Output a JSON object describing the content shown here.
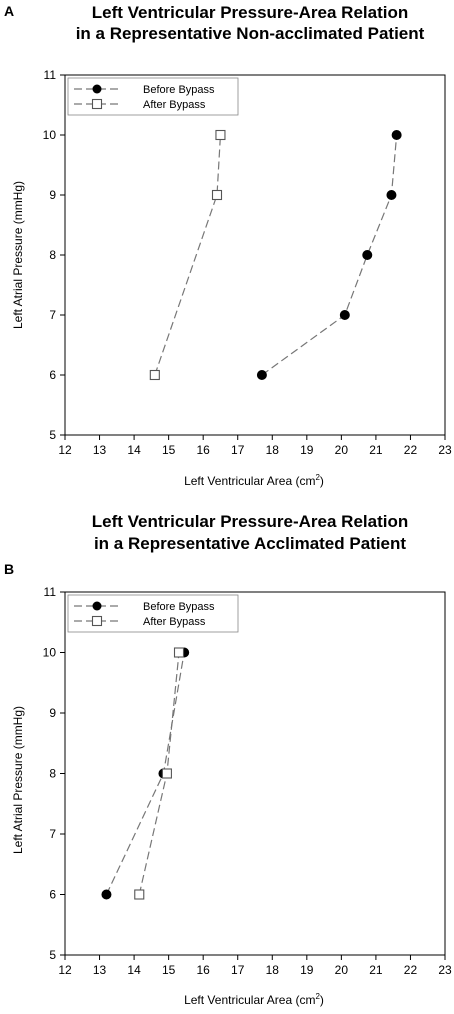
{
  "chart_data": [
    {
      "type": "line",
      "panel": "A",
      "title_line1": "Left Ventricular Pressure-Area Relation",
      "title_line2": "in a Representative Non-acclimated Patient",
      "xlabel": "Left Ventricular Area (cm",
      "xlabel_sup": "2",
      "xlabel_close": ")",
      "ylabel": "Left Atrial Pressure (mmHg)",
      "xlim": [
        12,
        23
      ],
      "ylim": [
        5,
        11
      ],
      "xticks": [
        12,
        13,
        14,
        15,
        16,
        17,
        18,
        19,
        20,
        21,
        22,
        23
      ],
      "yticks": [
        5,
        6,
        7,
        8,
        9,
        10,
        11
      ],
      "legend_position": "top-left",
      "series": [
        {
          "name": "Before Bypass",
          "marker": "filled-circle",
          "color": "#000000",
          "x": [
            17.7,
            20.1,
            20.75,
            21.45,
            21.6
          ],
          "y": [
            6,
            7,
            8,
            9,
            10
          ]
        },
        {
          "name": "After Bypass",
          "marker": "open-square",
          "color": "#555555",
          "x": [
            14.6,
            16.4,
            16.5
          ],
          "y": [
            6,
            9,
            10
          ]
        }
      ]
    },
    {
      "type": "line",
      "panel": "B",
      "title_line1": "Left Ventricular Pressure-Area Relation",
      "title_line2": "in a Representative Acclimated Patient",
      "xlabel": "Left Ventricular Area (cm",
      "xlabel_sup": "2",
      "xlabel_close": ")",
      "ylabel": "Left Atrial Pressure (mmHg)",
      "xlim": [
        12,
        23
      ],
      "ylim": [
        5,
        11
      ],
      "xticks": [
        12,
        13,
        14,
        15,
        16,
        17,
        18,
        19,
        20,
        21,
        22,
        23
      ],
      "yticks": [
        5,
        6,
        7,
        8,
        9,
        10,
        11
      ],
      "legend_position": "top-left",
      "series": [
        {
          "name": "Before Bypass",
          "marker": "filled-circle",
          "color": "#000000",
          "x": [
            13.2,
            14.85,
            15.45
          ],
          "y": [
            6,
            8,
            10
          ]
        },
        {
          "name": "After Bypass",
          "marker": "open-square",
          "color": "#555555",
          "x": [
            14.15,
            14.95,
            15.3
          ],
          "y": [
            6,
            8,
            10
          ]
        }
      ]
    }
  ]
}
